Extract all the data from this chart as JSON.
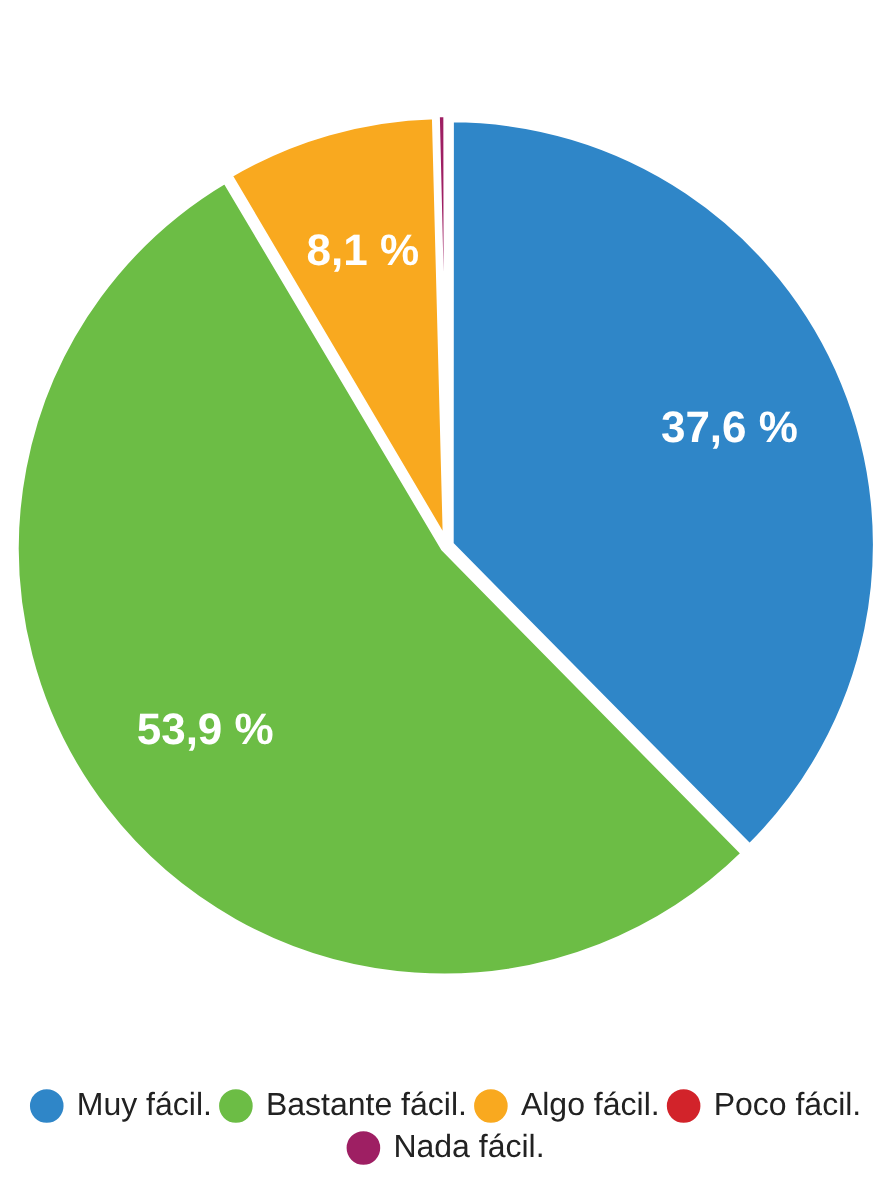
{
  "chart_data": {
    "type": "pie",
    "categories": [
      "Muy fácil.",
      "Bastante fácil.",
      "Algo fácil.",
      "Poco fácil.",
      "Nada fácil."
    ],
    "values": [
      37.6,
      53.9,
      8.1,
      0,
      0.4
    ],
    "colors": [
      "#2f86c8",
      "#6cbd45",
      "#f9a91f",
      "#d2232a",
      "#9e1f63"
    ],
    "value_labels": [
      "37,6 %",
      "53,9 %",
      "8,1 %",
      null,
      null
    ],
    "legend": "bottom"
  }
}
